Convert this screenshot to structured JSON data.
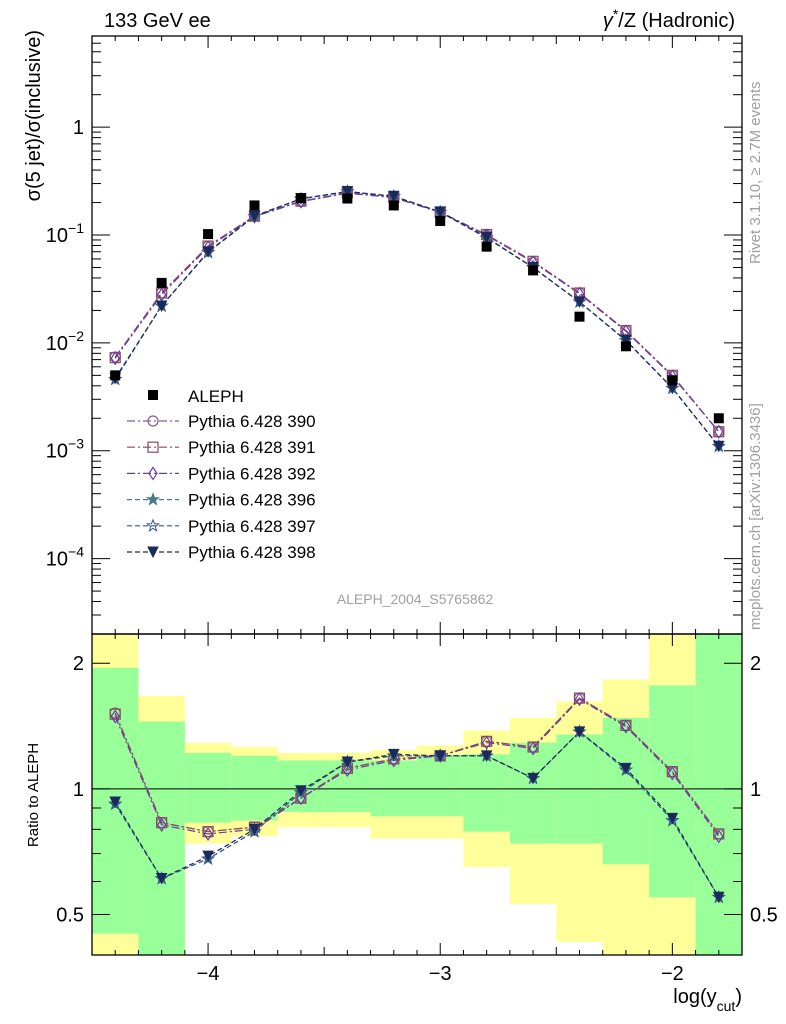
{
  "header": {
    "left": "133 GeV ee",
    "right_pre": "γ",
    "right_sup": "*",
    "right_post": "/Z (Hadronic)"
  },
  "side": {
    "rivet": "Rivet 3.1.10, ≥ 2.7M events",
    "mcplots": "mcplots.cern.ch [arXiv:1306.3436]"
  },
  "chart_data": {
    "type": "line",
    "title": "σ(5 jet)/σ(inclusive) vs log(y_cut)",
    "analysis_id": "ALEPH_2004_S5765862",
    "ylabel": "σ(5 jet)/σ(inclusive)",
    "ratio_ylabel": "Ratio to ALEPH",
    "xlabel_main": "log(y",
    "xlabel_sub": "cut",
    "xlabel_close": ")",
    "xlim": [
      -4.5,
      -1.7
    ],
    "ylim": [
      2e-05,
      7
    ],
    "ratio_ylim": [
      0.4,
      2.35
    ],
    "yscale": "log",
    "x_ticks": [
      "−4",
      "−3",
      "−2"
    ],
    "x_tick_values": [
      -4,
      -3,
      -2
    ],
    "y_ticks": [
      {
        "v": 1,
        "mant": "1",
        "exp": ""
      },
      {
        "v": 0.1,
        "mant": "10",
        "exp": "−1"
      },
      {
        "v": 0.01,
        "mant": "10",
        "exp": "−2"
      },
      {
        "v": 0.001,
        "mant": "10",
        "exp": "−3"
      },
      {
        "v": 0.0001,
        "mant": "10",
        "exp": "−4"
      }
    ],
    "ratio_ticks": [
      {
        "v": 2,
        "label": "2"
      },
      {
        "v": 1,
        "label": "1"
      },
      {
        "v": 0.5,
        "label": "0.5"
      }
    ],
    "x": [
      -4.4,
      -4.2,
      -4.0,
      -3.8,
      -3.6,
      -3.4,
      -3.2,
      -3.0,
      -2.8,
      -2.6,
      -2.4,
      -2.2,
      -2.0,
      -1.8
    ],
    "data": {
      "name": "ALEPH",
      "values": [
        0.005,
        0.036,
        0.102,
        0.188,
        0.22,
        0.218,
        0.188,
        0.135,
        0.078,
        0.047,
        0.0175,
        0.0093,
        0.0045,
        0.002
      ],
      "band_inner": [
        [
          0.45,
          1.95
        ],
        [
          0.4,
          1.45
        ],
        [
          0.83,
          1.22
        ],
        [
          0.84,
          1.2
        ],
        [
          0.88,
          1.17
        ],
        [
          0.88,
          1.17
        ],
        [
          0.86,
          1.17
        ],
        [
          0.86,
          1.2
        ],
        [
          0.79,
          1.21
        ],
        [
          0.74,
          1.29
        ],
        [
          0.74,
          1.35
        ],
        [
          0.66,
          1.48
        ],
        [
          0.55,
          1.77
        ],
        [
          0.4,
          2.35
        ]
      ],
      "band_outer": [
        [
          0.4,
          2.35
        ],
        [
          0.4,
          1.67
        ],
        [
          0.74,
          1.29
        ],
        [
          0.77,
          1.26
        ],
        [
          0.81,
          1.22
        ],
        [
          0.81,
          1.22
        ],
        [
          0.76,
          1.24
        ],
        [
          0.76,
          1.27
        ],
        [
          0.65,
          1.38
        ],
        [
          0.53,
          1.48
        ],
        [
          0.43,
          1.62
        ],
        [
          0.4,
          1.83
        ],
        [
          0.4,
          2.35
        ],
        [
          0.4,
          2.35
        ]
      ]
    },
    "series": [
      {
        "name": "Pythia 6.428 390",
        "marker": "circle",
        "color": "#8b5a8b",
        "dash": "8,3,2,3",
        "values": [
          0.0074,
          0.029,
          0.079,
          0.15,
          0.205,
          0.245,
          0.223,
          0.163,
          0.1,
          0.056,
          0.029,
          0.013,
          0.005,
          0.0015
        ],
        "ratio": [
          1.52,
          0.83,
          0.79,
          0.81,
          0.95,
          1.12,
          1.18,
          1.2,
          1.3,
          1.26,
          1.65,
          1.42,
          1.1,
          0.78
        ]
      },
      {
        "name": "Pythia 6.428 391",
        "marker": "square",
        "color": "#8b4a5a",
        "dash": "8,3,2,3",
        "values": [
          0.0073,
          0.029,
          0.079,
          0.15,
          0.206,
          0.246,
          0.223,
          0.163,
          0.101,
          0.057,
          0.029,
          0.013,
          0.005,
          0.0015
        ],
        "ratio": [
          1.51,
          0.83,
          0.79,
          0.81,
          0.95,
          1.12,
          1.18,
          1.2,
          1.3,
          1.26,
          1.65,
          1.42,
          1.1,
          0.78
        ]
      },
      {
        "name": "Pythia 6.428 392",
        "marker": "diamond",
        "color": "#6a3aa8",
        "dash": "8,3,2,3",
        "values": [
          0.0072,
          0.028,
          0.077,
          0.148,
          0.204,
          0.244,
          0.222,
          0.162,
          0.099,
          0.056,
          0.0285,
          0.0128,
          0.0049,
          0.0015
        ],
        "ratio": [
          1.49,
          0.82,
          0.78,
          0.8,
          0.95,
          1.11,
          1.17,
          1.2,
          1.29,
          1.25,
          1.64,
          1.41,
          1.09,
          0.77
        ]
      },
      {
        "name": "Pythia 6.428 396",
        "marker": "star",
        "color": "#4a7a8a",
        "dash": "5,3",
        "values": [
          0.0046,
          0.022,
          0.069,
          0.149,
          0.216,
          0.252,
          0.228,
          0.163,
          0.094,
          0.05,
          0.024,
          0.0105,
          0.0038,
          0.0011
        ],
        "ratio": [
          0.92,
          0.61,
          0.68,
          0.79,
          0.98,
          1.16,
          1.2,
          1.2,
          1.2,
          1.06,
          1.37,
          1.11,
          0.84,
          0.55
        ]
      },
      {
        "name": "Pythia 6.428 397",
        "marker": "starOpen",
        "color": "#3a5a8a",
        "dash": "5,3",
        "values": [
          0.0046,
          0.022,
          0.069,
          0.149,
          0.216,
          0.252,
          0.228,
          0.163,
          0.094,
          0.05,
          0.024,
          0.0105,
          0.0038,
          0.0011
        ],
        "ratio": [
          0.92,
          0.61,
          0.68,
          0.79,
          0.98,
          1.16,
          1.2,
          1.2,
          1.2,
          1.06,
          1.37,
          1.11,
          0.84,
          0.55
        ]
      },
      {
        "name": "Pythia 6.428 398",
        "marker": "triDown",
        "color": "#1a2a5a",
        "dash": "5,3",
        "values": [
          0.0047,
          0.022,
          0.07,
          0.15,
          0.217,
          0.253,
          0.229,
          0.164,
          0.095,
          0.05,
          0.024,
          0.0106,
          0.0038,
          0.0011
        ],
        "ratio": [
          0.93,
          0.61,
          0.69,
          0.8,
          0.99,
          1.16,
          1.21,
          1.2,
          1.2,
          1.06,
          1.37,
          1.12,
          0.85,
          0.55
        ]
      }
    ]
  },
  "colors": {
    "band_inner": "#99ff99",
    "band_outer": "#ffff99",
    "data": "#000000"
  }
}
